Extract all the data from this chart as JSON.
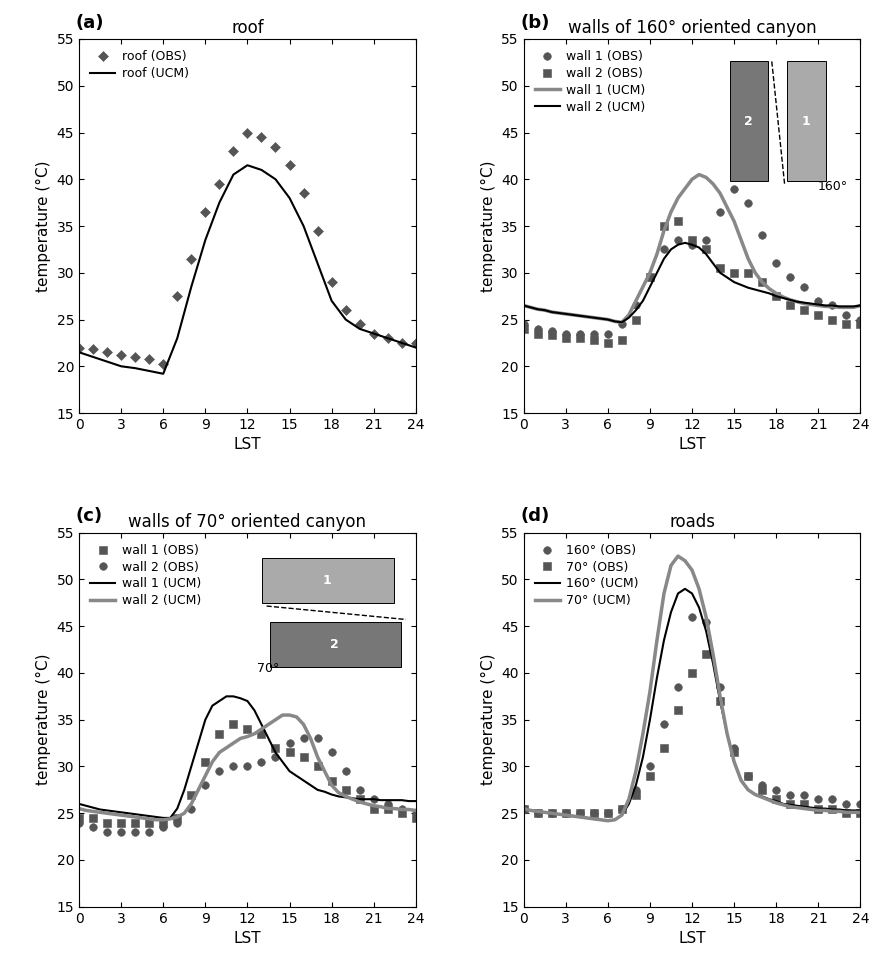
{
  "roof_obs_x": [
    0,
    1,
    2,
    3,
    4,
    5,
    6,
    7,
    8,
    9,
    10,
    11,
    12,
    13,
    14,
    15,
    16,
    17,
    18,
    19,
    20,
    21,
    22,
    23,
    24
  ],
  "roof_obs_y": [
    22.0,
    21.8,
    21.5,
    21.2,
    21.0,
    20.8,
    20.2,
    27.5,
    31.5,
    36.5,
    39.5,
    43.0,
    45.0,
    44.5,
    43.5,
    41.5,
    38.5,
    34.5,
    29.0,
    26.0,
    24.5,
    23.5,
    23.0,
    22.5,
    22.5
  ],
  "roof_ucm_x": [
    0,
    1,
    2,
    3,
    4,
    5,
    6,
    7,
    8,
    9,
    10,
    11,
    12,
    13,
    14,
    15,
    16,
    17,
    18,
    19,
    20,
    21,
    22,
    23,
    24
  ],
  "roof_ucm_y": [
    21.5,
    21.0,
    20.5,
    20.0,
    19.8,
    19.5,
    19.2,
    23.0,
    28.5,
    33.5,
    37.5,
    40.5,
    41.5,
    41.0,
    40.0,
    38.0,
    35.0,
    31.0,
    27.0,
    25.0,
    24.0,
    23.5,
    23.0,
    22.5,
    22.0
  ],
  "wall160_1obs_x": [
    0,
    1,
    2,
    3,
    4,
    5,
    6,
    7,
    8,
    9,
    10,
    11,
    12,
    13,
    14,
    15,
    16,
    17,
    18,
    19,
    20,
    21,
    22,
    23,
    24
  ],
  "wall160_1obs_y": [
    24.5,
    24.0,
    23.8,
    23.5,
    23.5,
    23.5,
    23.5,
    24.5,
    26.5,
    29.5,
    32.5,
    33.5,
    33.0,
    33.5,
    36.5,
    39.0,
    37.5,
    34.0,
    31.0,
    29.5,
    28.5,
    27.0,
    26.5,
    25.5,
    25.0
  ],
  "wall160_2obs_x": [
    0,
    1,
    2,
    3,
    4,
    5,
    6,
    7,
    8,
    9,
    10,
    11,
    12,
    13,
    14,
    15,
    16,
    17,
    18,
    19,
    20,
    21,
    22,
    23,
    24
  ],
  "wall160_2obs_y": [
    24.0,
    23.5,
    23.3,
    23.0,
    23.0,
    22.8,
    22.5,
    22.8,
    25.0,
    29.5,
    35.0,
    35.5,
    33.5,
    32.5,
    30.5,
    30.0,
    30.0,
    29.0,
    27.5,
    26.5,
    26.0,
    25.5,
    25.0,
    24.5,
    24.5
  ],
  "wall160_1ucm_x": [
    0,
    0.5,
    1,
    1.5,
    2,
    2.5,
    3,
    3.5,
    4,
    4.5,
    5,
    5.5,
    6,
    6.5,
    7,
    7.5,
    8,
    8.5,
    9,
    9.5,
    10,
    10.5,
    11,
    11.5,
    12,
    12.5,
    13,
    13.5,
    14,
    14.5,
    15,
    15.5,
    16,
    16.5,
    17,
    17.5,
    18,
    18.5,
    19,
    19.5,
    20,
    20.5,
    21,
    21.5,
    22,
    22.5,
    23,
    23.5,
    24
  ],
  "wall160_1ucm_y": [
    26.5,
    26.3,
    26.1,
    26.0,
    25.8,
    25.7,
    25.6,
    25.5,
    25.4,
    25.3,
    25.2,
    25.1,
    25.0,
    24.8,
    24.7,
    25.5,
    27.0,
    28.5,
    30.0,
    32.0,
    34.5,
    36.5,
    38.0,
    39.0,
    40.0,
    40.5,
    40.2,
    39.5,
    38.5,
    37.0,
    35.5,
    33.5,
    31.5,
    30.0,
    29.0,
    28.3,
    27.8,
    27.4,
    27.1,
    26.9,
    26.7,
    26.6,
    26.5,
    26.4,
    26.4,
    26.3,
    26.3,
    26.3,
    26.5
  ],
  "wall160_2ucm_x": [
    0,
    0.5,
    1,
    1.5,
    2,
    2.5,
    3,
    3.5,
    4,
    4.5,
    5,
    5.5,
    6,
    6.5,
    7,
    7.5,
    8,
    8.5,
    9,
    9.5,
    10,
    10.5,
    11,
    11.5,
    12,
    12.5,
    13,
    13.5,
    14,
    14.5,
    15,
    15.5,
    16,
    16.5,
    17,
    17.5,
    18,
    18.5,
    19,
    19.5,
    20,
    20.5,
    21,
    21.5,
    22,
    22.5,
    23,
    23.5,
    24
  ],
  "wall160_2ucm_y": [
    26.5,
    26.3,
    26.1,
    26.0,
    25.8,
    25.7,
    25.6,
    25.5,
    25.4,
    25.3,
    25.2,
    25.1,
    25.0,
    24.8,
    24.7,
    25.2,
    26.0,
    27.0,
    28.5,
    30.0,
    31.5,
    32.5,
    33.0,
    33.2,
    33.0,
    32.7,
    32.0,
    31.0,
    30.0,
    29.5,
    29.0,
    28.7,
    28.4,
    28.2,
    28.0,
    27.8,
    27.5,
    27.3,
    27.1,
    26.9,
    26.8,
    26.7,
    26.6,
    26.5,
    26.5,
    26.4,
    26.4,
    26.4,
    26.5
  ],
  "wall70_1obs_x": [
    0,
    1,
    2,
    3,
    4,
    5,
    6,
    7,
    8,
    9,
    10,
    11,
    12,
    13,
    14,
    15,
    16,
    17,
    18,
    19,
    20,
    21,
    22,
    23,
    24
  ],
  "wall70_1obs_y": [
    24.5,
    24.5,
    24.0,
    24.0,
    24.0,
    24.0,
    24.0,
    24.5,
    27.0,
    30.5,
    33.5,
    34.5,
    34.0,
    33.5,
    32.0,
    31.5,
    31.0,
    30.0,
    28.5,
    27.5,
    26.5,
    25.5,
    25.5,
    25.0,
    24.5
  ],
  "wall70_2obs_x": [
    0,
    1,
    2,
    3,
    4,
    5,
    6,
    7,
    8,
    9,
    10,
    11,
    12,
    13,
    14,
    15,
    16,
    17,
    18,
    19,
    20,
    21,
    22,
    23,
    24
  ],
  "wall70_2obs_y": [
    24.0,
    23.5,
    23.0,
    23.0,
    23.0,
    23.0,
    23.5,
    24.0,
    25.5,
    28.0,
    29.5,
    30.0,
    30.0,
    30.5,
    31.0,
    32.5,
    33.0,
    33.0,
    31.5,
    29.5,
    27.5,
    26.5,
    26.0,
    25.5,
    25.0
  ],
  "wall70_1ucm_x": [
    0,
    0.5,
    1,
    1.5,
    2,
    2.5,
    3,
    3.5,
    4,
    4.5,
    5,
    5.5,
    6,
    6.5,
    7,
    7.5,
    8,
    8.5,
    9,
    9.5,
    10,
    10.5,
    11,
    11.5,
    12,
    12.5,
    13,
    13.5,
    14,
    14.5,
    15,
    15.5,
    16,
    16.5,
    17,
    17.5,
    18,
    18.5,
    19,
    19.5,
    20,
    20.5,
    21,
    21.5,
    22,
    22.5,
    23,
    23.5,
    24
  ],
  "wall70_1ucm_y": [
    26.0,
    25.8,
    25.6,
    25.4,
    25.3,
    25.2,
    25.1,
    25.0,
    24.9,
    24.8,
    24.7,
    24.6,
    24.5,
    24.5,
    25.5,
    27.5,
    30.0,
    32.5,
    35.0,
    36.5,
    37.0,
    37.5,
    37.5,
    37.3,
    37.0,
    36.0,
    34.5,
    33.0,
    31.5,
    30.5,
    29.5,
    29.0,
    28.5,
    28.0,
    27.5,
    27.3,
    27.0,
    26.8,
    26.7,
    26.6,
    26.5,
    26.5,
    26.5,
    26.4,
    26.4,
    26.4,
    26.4,
    26.3,
    26.3
  ],
  "wall70_2ucm_x": [
    0,
    0.5,
    1,
    1.5,
    2,
    2.5,
    3,
    3.5,
    4,
    4.5,
    5,
    5.5,
    6,
    6.5,
    7,
    7.5,
    8,
    8.5,
    9,
    9.5,
    10,
    10.5,
    11,
    11.5,
    12,
    12.5,
    13,
    13.5,
    14,
    14.5,
    15,
    15.5,
    16,
    16.5,
    17,
    17.5,
    18,
    18.5,
    19,
    19.5,
    20,
    20.5,
    21,
    21.5,
    22,
    22.5,
    23,
    23.5,
    24
  ],
  "wall70_2ucm_y": [
    25.5,
    25.3,
    25.2,
    25.1,
    25.0,
    24.9,
    24.8,
    24.7,
    24.6,
    24.5,
    24.4,
    24.3,
    24.3,
    24.4,
    24.6,
    25.0,
    26.0,
    27.5,
    29.0,
    30.5,
    31.5,
    32.0,
    32.5,
    33.0,
    33.2,
    33.5,
    34.0,
    34.5,
    35.0,
    35.5,
    35.5,
    35.3,
    34.5,
    33.0,
    31.0,
    29.5,
    28.0,
    27.2,
    26.8,
    26.5,
    26.2,
    26.0,
    25.8,
    25.7,
    25.5,
    25.5,
    25.4,
    25.4,
    25.3
  ],
  "road160_obs_x": [
    0,
    1,
    2,
    3,
    4,
    5,
    6,
    7,
    8,
    9,
    10,
    11,
    12,
    13,
    14,
    15,
    16,
    17,
    18,
    19,
    20,
    21,
    22,
    23,
    24
  ],
  "road160_obs_y": [
    25.5,
    25.0,
    25.0,
    25.0,
    25.0,
    25.0,
    25.0,
    25.5,
    27.5,
    30.0,
    34.5,
    38.5,
    46.0,
    45.5,
    38.5,
    32.0,
    29.0,
    28.0,
    27.5,
    27.0,
    27.0,
    26.5,
    26.5,
    26.0,
    26.0
  ],
  "road70_obs_x": [
    0,
    1,
    2,
    3,
    4,
    5,
    6,
    7,
    8,
    9,
    10,
    11,
    12,
    13,
    14,
    15,
    16,
    17,
    18,
    19,
    20,
    21,
    22,
    23,
    24
  ],
  "road70_obs_y": [
    25.5,
    25.0,
    25.0,
    25.0,
    25.0,
    25.0,
    25.0,
    25.5,
    27.0,
    29.0,
    32.0,
    36.0,
    40.0,
    42.0,
    37.0,
    31.5,
    29.0,
    27.5,
    26.5,
    26.0,
    26.0,
    25.5,
    25.5,
    25.0,
    25.0
  ],
  "road160_ucm_x": [
    0,
    0.5,
    1,
    1.5,
    2,
    2.5,
    3,
    3.5,
    4,
    4.5,
    5,
    5.5,
    6,
    6.5,
    7,
    7.5,
    8,
    8.5,
    9,
    9.5,
    10,
    10.5,
    11,
    11.5,
    12,
    12.5,
    13,
    13.5,
    14,
    14.5,
    15,
    15.5,
    16,
    16.5,
    17,
    17.5,
    18,
    18.5,
    19,
    19.5,
    20,
    20.5,
    21,
    21.5,
    22,
    22.5,
    23,
    23.5,
    24
  ],
  "road160_ucm_y": [
    25.5,
    25.3,
    25.2,
    25.1,
    25.0,
    24.9,
    24.8,
    24.7,
    24.6,
    24.5,
    24.4,
    24.3,
    24.2,
    24.3,
    24.8,
    26.0,
    28.0,
    31.0,
    35.0,
    39.5,
    43.5,
    46.5,
    48.5,
    49.0,
    48.5,
    47.0,
    44.5,
    41.0,
    37.0,
    33.5,
    30.5,
    28.5,
    27.5,
    27.0,
    26.8,
    26.5,
    26.3,
    26.0,
    25.9,
    25.8,
    25.7,
    25.6,
    25.5,
    25.5,
    25.4,
    25.4,
    25.3,
    25.3,
    25.3
  ],
  "road70_ucm_x": [
    0,
    0.5,
    1,
    1.5,
    2,
    2.5,
    3,
    3.5,
    4,
    4.5,
    5,
    5.5,
    6,
    6.5,
    7,
    7.5,
    8,
    8.5,
    9,
    9.5,
    10,
    10.5,
    11,
    11.5,
    12,
    12.5,
    13,
    13.5,
    14,
    14.5,
    15,
    15.5,
    16,
    16.5,
    17,
    17.5,
    18,
    18.5,
    19,
    19.5,
    20,
    20.5,
    21,
    21.5,
    22,
    22.5,
    23,
    23.5,
    24
  ],
  "road70_ucm_y": [
    25.5,
    25.3,
    25.2,
    25.1,
    25.0,
    24.9,
    24.8,
    24.7,
    24.6,
    24.5,
    24.4,
    24.3,
    24.2,
    24.3,
    24.8,
    26.5,
    29.5,
    33.5,
    38.0,
    43.5,
    48.5,
    51.5,
    52.5,
    52.0,
    51.0,
    49.0,
    46.0,
    42.0,
    37.5,
    33.5,
    30.5,
    28.5,
    27.5,
    27.0,
    26.7,
    26.4,
    26.1,
    25.9,
    25.7,
    25.6,
    25.5,
    25.4,
    25.3,
    25.3,
    25.2,
    25.2,
    25.1,
    25.1,
    25.1
  ],
  "color_dark": "#555555",
  "color_gray": "#888888",
  "color_black": "#000000",
  "ylim": [
    15,
    55
  ],
  "xlim": [
    0,
    24
  ],
  "xticks": [
    0,
    3,
    6,
    9,
    12,
    15,
    18,
    21,
    24
  ],
  "yticks": [
    15,
    20,
    25,
    30,
    35,
    40,
    45,
    50,
    55
  ]
}
